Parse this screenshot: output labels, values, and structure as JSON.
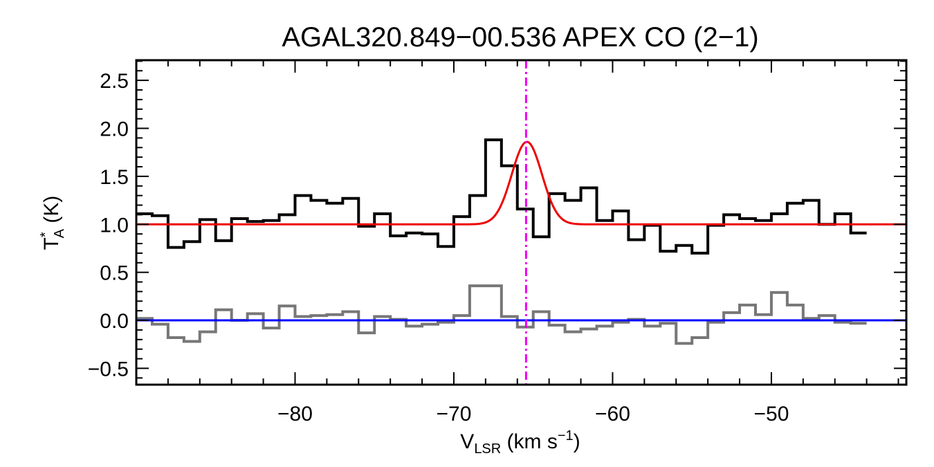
{
  "chart_data": {
    "type": "line",
    "title": "AGAL320.849−00.536  APEX CO (2−1)",
    "xlabel": {
      "main": "V",
      "sub": "LSR",
      "units_pre": " (km s",
      "sup": "−1",
      "units_post": ")"
    },
    "ylabel": {
      "main": "T",
      "sup": "*",
      "sub": "A",
      "units": " (K)"
    },
    "xlim": [
      -90.0,
      -41.5
    ],
    "ylim": [
      -0.67,
      2.71
    ],
    "xticks": [
      {
        "value": -80,
        "label": "−80"
      },
      {
        "value": -70,
        "label": "−70"
      },
      {
        "value": -60,
        "label": "−60"
      },
      {
        "value": -50,
        "label": "−50"
      }
    ],
    "yticks": [
      {
        "value": -0.5,
        "label": "−0.5"
      },
      {
        "value": 0.0,
        "label": "0.0"
      },
      {
        "value": 0.5,
        "label": "0.5"
      },
      {
        "value": 1.0,
        "label": "1.0"
      },
      {
        "value": 1.5,
        "label": "1.5"
      },
      {
        "value": 2.0,
        "label": "2.0"
      },
      {
        "value": 2.5,
        "label": "2.5"
      }
    ],
    "vline": {
      "x": -65.45,
      "color": "#ee00ee",
      "style": "dash-dot"
    },
    "series": [
      {
        "name": "spectrum",
        "style": "step",
        "color": "#000000",
        "x0": -90.0,
        "dx": 1.0,
        "values": [
          1.11,
          1.09,
          0.76,
          0.82,
          1.05,
          0.83,
          1.06,
          1.03,
          1.04,
          1.1,
          1.3,
          1.25,
          1.22,
          1.27,
          0.98,
          1.11,
          0.88,
          0.91,
          0.9,
          0.77,
          1.08,
          1.3,
          1.88,
          1.61,
          1.16,
          0.87,
          1.32,
          1.25,
          1.38,
          1.04,
          1.14,
          0.84,
          0.99,
          0.72,
          0.78,
          0.7,
          0.99,
          1.1,
          1.06,
          1.04,
          1.11,
          1.22,
          1.25,
          1.0,
          1.11,
          0.91
        ]
      },
      {
        "name": "residual",
        "style": "step",
        "color": "#777777",
        "x0": -90.0,
        "dx": 1.0,
        "values": [
          0.02,
          -0.04,
          -0.18,
          -0.22,
          -0.12,
          0.11,
          0.0,
          0.07,
          -0.08,
          0.15,
          0.04,
          0.05,
          0.06,
          0.09,
          -0.13,
          0.04,
          0.01,
          -0.06,
          -0.04,
          -0.02,
          0.05,
          0.36,
          0.36,
          0.04,
          -0.07,
          0.09,
          -0.05,
          -0.12,
          -0.09,
          -0.06,
          -0.02,
          0.01,
          -0.06,
          -0.03,
          -0.24,
          -0.18,
          -0.02,
          0.08,
          0.16,
          0.06,
          0.29,
          0.16,
          0.02,
          0.05,
          -0.02,
          -0.03
        ]
      },
      {
        "name": "gaussian-fit",
        "style": "gaussian",
        "color": "#ee0000",
        "baseline": 1.0,
        "amplitude": 0.86,
        "center": -65.4,
        "sigma": 0.95
      },
      {
        "name": "zero-baseline",
        "style": "hline",
        "color": "#0000ff",
        "value": 0.0
      }
    ]
  }
}
